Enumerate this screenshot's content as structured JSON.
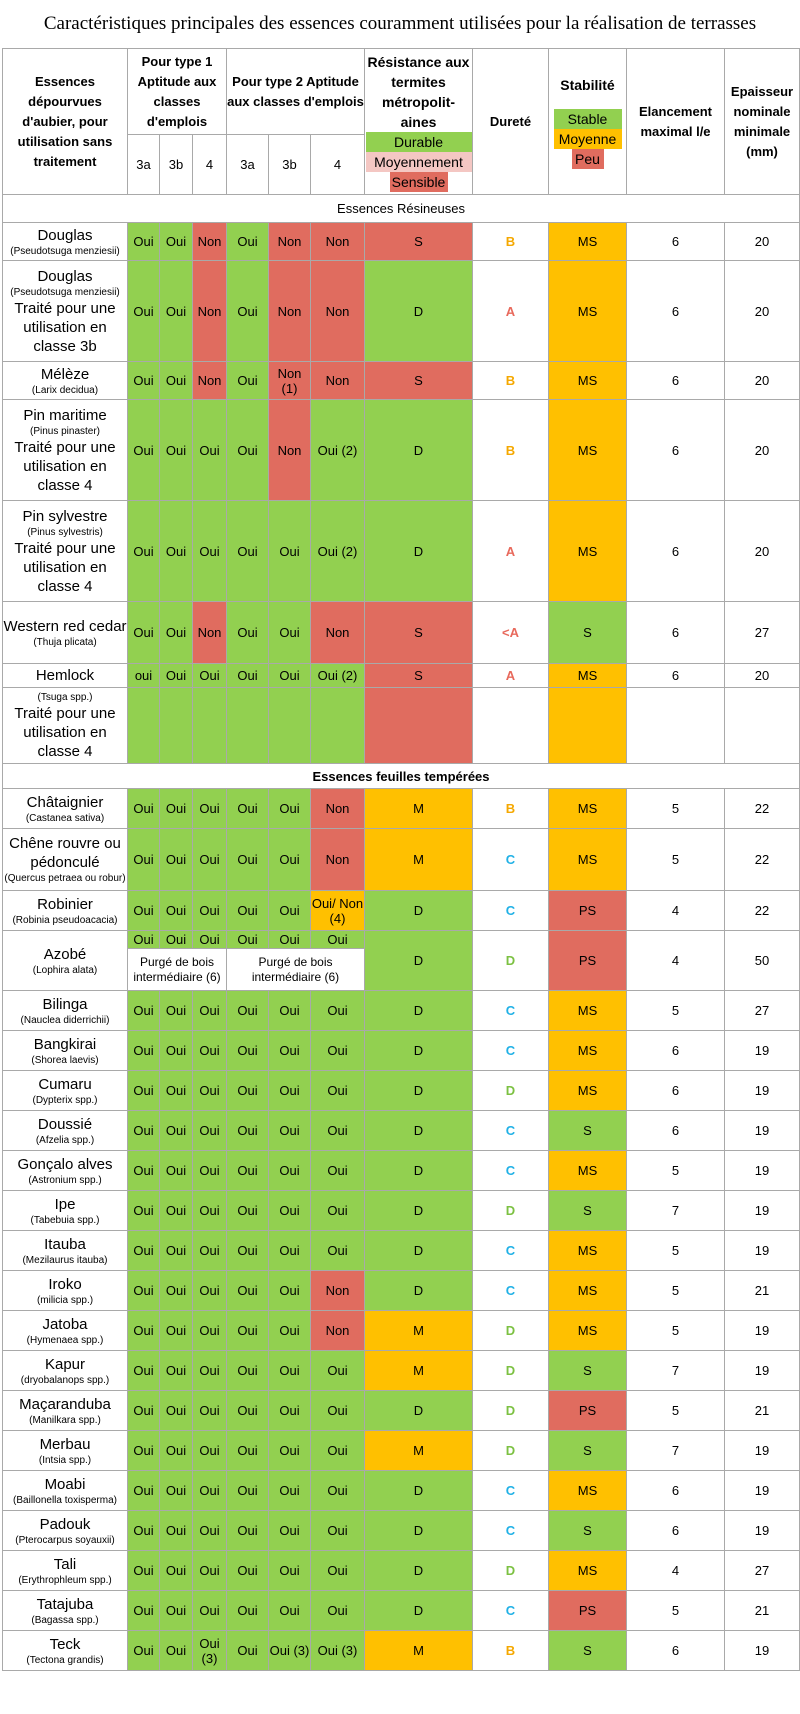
{
  "title": "Caractéristiques principales des essences couramment utilisées pour la réalisation de terrasses",
  "header": {
    "essences": "Essences dépourvues d'aubier, pour utilisation sans traitement",
    "type1": "Pour type 1 Aptitude aux classes d'emplois",
    "type2": "Pour type 2 Aptitude aux classes d'emplois",
    "resistance": "Résistance aux termites métropolit-aines",
    "res_legend": [
      "Durable",
      "Moyennement",
      "Sensible"
    ],
    "durete": "Dureté",
    "stabilite": "Stabilité",
    "stab_legend": [
      "Stable",
      "Moyenne",
      "Peu"
    ],
    "elancement": "Elancement maximal l/e",
    "epaisseur": "Epaisseur nominale minimale (mm)",
    "classes": [
      "3a",
      "3b",
      "4",
      "3a",
      "3b",
      "4"
    ]
  },
  "sections": {
    "resineux": "Essences Résineuses",
    "feuillus": "Essences feuilles tempérées"
  },
  "colors": {
    "green": "#92d050",
    "red": "#e06c5f",
    "orange": "#ffc000",
    "pink": "#f4c7c3",
    "hard_A": "#e8695c",
    "hard_B": "#f5a800",
    "hard_C": "#21b1e6",
    "hard_D": "#7cc142"
  },
  "resineux_rows": [
    {
      "name": "Douglas",
      "latin": "(Pseudotsuga menziesii)",
      "extra": "",
      "c": [
        "Oui",
        "Oui",
        "Non",
        "Oui",
        "Non",
        "Non"
      ],
      "res": "S",
      "hard": "B",
      "stab": "MS",
      "el": "6",
      "ep": "20"
    },
    {
      "name": "Douglas",
      "latin": "(Pseudotsuga menziesii)",
      "extra": "Traité pour une utilisation en classe 3b",
      "c": [
        "Oui",
        "Oui",
        "Non",
        "Oui",
        "Non",
        "Non"
      ],
      "res": "D",
      "hard": "A",
      "stab": "MS",
      "el": "6",
      "ep": "20"
    },
    {
      "name": "Mélèze",
      "latin": "(Larix decidua)",
      "extra": "",
      "c": [
        "Oui",
        "Oui",
        "Non",
        "Oui",
        "Non (1)",
        "Non"
      ],
      "res": "S",
      "hard": "B",
      "stab": "MS",
      "el": "6",
      "ep": "20"
    },
    {
      "name": "Pin maritime",
      "latin": "(Pinus pinaster)",
      "extra": "Traité pour une utilisation en classe 4",
      "c": [
        "Oui",
        "Oui",
        "Oui",
        "Oui",
        "Non",
        "Oui (2)"
      ],
      "res": "D",
      "hard": "B",
      "stab": "MS",
      "el": "6",
      "ep": "20"
    },
    {
      "name": "Pin sylvestre",
      "latin": "(Pinus sylvestris)",
      "extra": "Traité pour une utilisation en classe 4",
      "c": [
        "Oui",
        "Oui",
        "Oui",
        "Oui",
        "Oui",
        "Oui (2)"
      ],
      "res": "D",
      "hard": "A",
      "stab": "MS",
      "el": "6",
      "ep": "20"
    },
    {
      "name": "Western red cedar",
      "latin": "(Thuja plicata)",
      "extra": "",
      "c": [
        "Oui",
        "Oui",
        "Non",
        "Oui",
        "Oui",
        "Non"
      ],
      "res": "S",
      "hard": "<A",
      "stab": "S",
      "el": "6",
      "ep": "27"
    }
  ],
  "hemlock": {
    "name": "Hemlock",
    "latin": "(Tsuga spp.)",
    "extra": "Traité pour une utilisation en classe 4",
    "c": [
      "oui",
      "Oui",
      "Oui",
      "Oui",
      "Oui",
      "Oui (2)"
    ],
    "res": "S",
    "hard": "A",
    "stab": "MS",
    "el": "6",
    "ep": "20"
  },
  "feuillus_rows": [
    {
      "name": "Châtaignier",
      "latin": "(Castanea sativa)",
      "c": [
        "Oui",
        "Oui",
        "Oui",
        "Oui",
        "Oui",
        "Non"
      ],
      "res": "M",
      "hard": "B",
      "stab": "MS",
      "el": "5",
      "ep": "22"
    },
    {
      "name": "Chêne rouvre ou pédonculé",
      "latin": "(Quercus petraea ou robur)",
      "c": [
        "Oui",
        "Oui",
        "Oui",
        "Oui",
        "Oui",
        "Non"
      ],
      "res": "M",
      "hard": "C",
      "stab": "MS",
      "el": "5",
      "ep": "22"
    },
    {
      "name": "Robinier",
      "latin": "(Robinia pseudoacacia)",
      "c": [
        "Oui",
        "Oui",
        "Oui",
        "Oui",
        "Oui",
        "Oui/ Non (4)"
      ],
      "res": "D",
      "hard": "C",
      "stab": "PS",
      "el": "4",
      "ep": "22"
    }
  ],
  "azobe": {
    "name": "Azobé",
    "latin": "(Lophira alata)",
    "c": [
      "Oui",
      "Oui",
      "Oui",
      "Oui",
      "Oui",
      "Oui"
    ],
    "purge1": "Purgé de bois intermédiaire (6)",
    "purge2": "Purgé de bois intermédiaire (6)",
    "res": "D",
    "hard": "D",
    "stab": "PS",
    "el": "4",
    "ep": "50"
  },
  "tropical_rows": [
    {
      "name": "Bilinga",
      "latin": "(Nauclea diderrichii)",
      "c": [
        "Oui",
        "Oui",
        "Oui",
        "Oui",
        "Oui",
        "Oui"
      ],
      "res": "D",
      "hard": "C",
      "stab": "MS",
      "el": "5",
      "ep": "27"
    },
    {
      "name": "Bangkirai",
      "latin": "(Shorea laevis)",
      "c": [
        "Oui",
        "Oui",
        "Oui",
        "Oui",
        "Oui",
        "Oui"
      ],
      "res": "D",
      "hard": "C",
      "stab": "MS",
      "el": "6",
      "ep": "19"
    },
    {
      "name": "Cumaru",
      "latin": "(Dypterix spp.)",
      "c": [
        "Oui",
        "Oui",
        "Oui",
        "Oui",
        "Oui",
        "Oui"
      ],
      "res": "D",
      "hard": "D",
      "stab": "MS",
      "el": "6",
      "ep": "19"
    },
    {
      "name": "Doussié",
      "latin": "(Afzelia spp.)",
      "c": [
        "Oui",
        "Oui",
        "Oui",
        "Oui",
        "Oui",
        "Oui"
      ],
      "res": "D",
      "hard": "C",
      "stab": "S",
      "el": "6",
      "ep": "19"
    },
    {
      "name": "Gonçalo alves",
      "latin": "(Astronium spp.)",
      "c": [
        "Oui",
        "Oui",
        "Oui",
        "Oui",
        "Oui",
        "Oui"
      ],
      "res": "D",
      "hard": "C",
      "stab": "MS",
      "el": "5",
      "ep": "19"
    },
    {
      "name": "Ipe",
      "latin": "(Tabebuia spp.)",
      "c": [
        "Oui",
        "Oui",
        "Oui",
        "Oui",
        "Oui",
        "Oui"
      ],
      "res": "D",
      "hard": "D",
      "stab": "S",
      "el": "7",
      "ep": "19"
    },
    {
      "name": "Itauba",
      "latin": "(Mezilaurus itauba)",
      "c": [
        "Oui",
        "Oui",
        "Oui",
        "Oui",
        "Oui",
        "Oui"
      ],
      "res": "D",
      "hard": "C",
      "stab": "MS",
      "el": "5",
      "ep": "19"
    },
    {
      "name": "Iroko",
      "latin": "(milicia spp.)",
      "c": [
        "Oui",
        "Oui",
        "Oui",
        "Oui",
        "Oui",
        "Non"
      ],
      "res": "D",
      "hard": "C",
      "stab": "MS",
      "el": "5",
      "ep": "21"
    },
    {
      "name": "Jatoba",
      "latin": "(Hymenaea spp.)",
      "c": [
        "Oui",
        "Oui",
        "Oui",
        "Oui",
        "Oui",
        "Non"
      ],
      "res": "M",
      "hard": "D",
      "stab": "MS",
      "el": "5",
      "ep": "19"
    },
    {
      "name": "Kapur",
      "latin": "(dryobalanops spp.)",
      "c": [
        "Oui",
        "Oui",
        "Oui",
        "Oui",
        "Oui",
        "Oui"
      ],
      "res": "M",
      "hard": "D",
      "stab": "S",
      "el": "7",
      "ep": "19"
    },
    {
      "name": "Maçaranduba",
      "latin": "(Manilkara spp.)",
      "c": [
        "Oui",
        "Oui",
        "Oui",
        "Oui",
        "Oui",
        "Oui"
      ],
      "res": "D",
      "hard": "D",
      "stab": "PS",
      "el": "5",
      "ep": "21"
    },
    {
      "name": "Merbau",
      "latin": "(Intsia spp.)",
      "c": [
        "Oui",
        "Oui",
        "Oui",
        "Oui",
        "Oui",
        "Oui"
      ],
      "res": "M",
      "hard": "D",
      "stab": "S",
      "el": "7",
      "ep": "19"
    },
    {
      "name": "Moabi",
      "latin": "(Baillonella toxisperma)",
      "c": [
        "Oui",
        "Oui",
        "Oui",
        "Oui",
        "Oui",
        "Oui"
      ],
      "res": "D",
      "hard": "C",
      "stab": "MS",
      "el": "6",
      "ep": "19"
    },
    {
      "name": "Padouk",
      "latin": "(Pterocarpus soyauxii)",
      "c": [
        "Oui",
        "Oui",
        "Oui",
        "Oui",
        "Oui",
        "Oui"
      ],
      "res": "D",
      "hard": "C",
      "stab": "S",
      "el": "6",
      "ep": "19"
    },
    {
      "name": "Tali",
      "latin": "(Erythrophleum spp.)",
      "c": [
        "Oui",
        "Oui",
        "Oui",
        "Oui",
        "Oui",
        "Oui"
      ],
      "res": "D",
      "hard": "D",
      "stab": "MS",
      "el": "4",
      "ep": "27"
    },
    {
      "name": "Tatajuba",
      "latin": "(Bagassa spp.)",
      "c": [
        "Oui",
        "Oui",
        "Oui",
        "Oui",
        "Oui",
        "Oui"
      ],
      "res": "D",
      "hard": "C",
      "stab": "PS",
      "el": "5",
      "ep": "21"
    },
    {
      "name": "Teck",
      "latin": "(Tectona grandis)",
      "c": [
        "Oui",
        "Oui",
        "Oui (3)",
        "Oui",
        "Oui (3)",
        "Oui (3)"
      ],
      "res": "M",
      "hard": "B",
      "stab": "S",
      "el": "6",
      "ep": "19"
    }
  ]
}
